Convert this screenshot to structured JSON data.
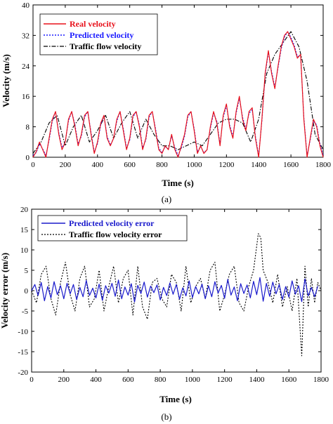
{
  "chart_data": [
    {
      "type": "line",
      "caption": "(a)",
      "xlabel": "Time (s)",
      "ylabel": "Velocity (m/s)",
      "xlim": [
        0,
        1800
      ],
      "ylim": [
        0,
        40
      ],
      "xticks": [
        0,
        200,
        400,
        600,
        800,
        1000,
        1200,
        1400,
        1600,
        1800
      ],
      "yticks": [
        0,
        8,
        16,
        24,
        32,
        40
      ],
      "grid": false,
      "legend_position": "top-left",
      "series": [
        {
          "name": "Real velocity",
          "color": "#e8101a",
          "style": "solid",
          "x": [
            0,
            20,
            40,
            60,
            80,
            100,
            120,
            140,
            160,
            180,
            200,
            220,
            240,
            260,
            280,
            300,
            320,
            340,
            360,
            380,
            400,
            420,
            440,
            460,
            480,
            500,
            520,
            540,
            560,
            580,
            600,
            620,
            640,
            660,
            680,
            700,
            720,
            740,
            760,
            780,
            800,
            820,
            840,
            860,
            880,
            900,
            920,
            940,
            960,
            980,
            1000,
            1020,
            1040,
            1060,
            1080,
            1100,
            1120,
            1140,
            1160,
            1180,
            1200,
            1220,
            1240,
            1260,
            1280,
            1300,
            1320,
            1340,
            1360,
            1380,
            1400,
            1420,
            1440,
            1460,
            1480,
            1500,
            1520,
            1540,
            1560,
            1580,
            1600,
            1620,
            1640,
            1660,
            1680,
            1700,
            1720,
            1740,
            1760,
            1780,
            1800
          ],
          "values": [
            0,
            1.5,
            4,
            2,
            0,
            5,
            10,
            12,
            6,
            2,
            4,
            10,
            12,
            8,
            3,
            6,
            11,
            12,
            6,
            1,
            4,
            9,
            11,
            5,
            3,
            5,
            10,
            12,
            7,
            2,
            5,
            11,
            12,
            8,
            2,
            5,
            11,
            12,
            7,
            2,
            1,
            3,
            2,
            6,
            2,
            0,
            3,
            6,
            11,
            12,
            7,
            1,
            3,
            1,
            2,
            8,
            12,
            9,
            3,
            11,
            14,
            8,
            5,
            12,
            16,
            10,
            7,
            12,
            13,
            5,
            0,
            10,
            22,
            28,
            22,
            18,
            24,
            29,
            32,
            33,
            31,
            29,
            26,
            27,
            10,
            0,
            5,
            10,
            8,
            3,
            0
          ]
        },
        {
          "name": "Predicted velocity",
          "color": "#1a1aff",
          "style": "dotted",
          "x": [
            0,
            20,
            40,
            60,
            80,
            100,
            120,
            140,
            160,
            180,
            200,
            220,
            240,
            260,
            280,
            300,
            320,
            340,
            360,
            380,
            400,
            420,
            440,
            460,
            480,
            500,
            520,
            540,
            560,
            580,
            600,
            620,
            640,
            660,
            680,
            700,
            720,
            740,
            760,
            780,
            800,
            820,
            840,
            860,
            880,
            900,
            920,
            940,
            960,
            980,
            1000,
            1020,
            1040,
            1060,
            1080,
            1100,
            1120,
            1140,
            1160,
            1180,
            1200,
            1220,
            1240,
            1260,
            1280,
            1300,
            1320,
            1340,
            1360,
            1380,
            1400,
            1420,
            1440,
            1460,
            1480,
            1500,
            1520,
            1540,
            1560,
            1580,
            1600,
            1620,
            1640,
            1660,
            1680,
            1700,
            1720,
            1740,
            1760,
            1780,
            1800
          ],
          "values": [
            0.5,
            1.2,
            3.5,
            2.2,
            0.5,
            4.5,
            9.5,
            12,
            6.5,
            2.5,
            4,
            9.5,
            12,
            8.5,
            3.5,
            5.5,
            10.5,
            12,
            6.5,
            1.5,
            3.5,
            8.5,
            11,
            5.5,
            3.2,
            5,
            9.5,
            12,
            7.5,
            2.5,
            4.5,
            10.5,
            12,
            8.5,
            2.5,
            4.5,
            10.5,
            12,
            7.5,
            2.5,
            1.2,
            2.8,
            2.2,
            5.5,
            2.5,
            0.5,
            2.5,
            5.5,
            10.5,
            12,
            7.5,
            1.5,
            2.8,
            1.2,
            2,
            7.5,
            11.5,
            9.5,
            3.5,
            10.5,
            13.5,
            8.5,
            5.5,
            11.5,
            15.5,
            10.5,
            7.5,
            11.5,
            12.5,
            5.5,
            0.5,
            9.5,
            21.5,
            27.5,
            22.5,
            18.5,
            23.5,
            28.5,
            31.5,
            33,
            31.5,
            29.5,
            26.5,
            26.5,
            10.5,
            0.5,
            4.5,
            9.5,
            8.5,
            3.5,
            0.5
          ]
        },
        {
          "name": "Traffic flow velocity",
          "color": "#000000",
          "style": "dashdot",
          "x": [
            0,
            50,
            100,
            150,
            200,
            250,
            300,
            350,
            400,
            450,
            500,
            550,
            600,
            650,
            700,
            750,
            800,
            850,
            900,
            950,
            1000,
            1050,
            1100,
            1150,
            1200,
            1250,
            1300,
            1350,
            1400,
            1450,
            1500,
            1550,
            1600,
            1650,
            1700,
            1750,
            1800
          ],
          "values": [
            1,
            4,
            9,
            11,
            3,
            8,
            11,
            4,
            7,
            11,
            5,
            9,
            12,
            5,
            10,
            6,
            3,
            3,
            2,
            3,
            4,
            3,
            6,
            9,
            10,
            10,
            9,
            4,
            10,
            22,
            27,
            30,
            33,
            29,
            20,
            6,
            2
          ]
        }
      ]
    },
    {
      "type": "line",
      "caption": "(b)",
      "xlabel": "Time (s)",
      "ylabel": "Velocity error (m/s)",
      "xlim": [
        0,
        1800
      ],
      "ylim": [
        -20,
        20
      ],
      "xticks": [
        0,
        200,
        400,
        600,
        800,
        1000,
        1200,
        1400,
        1600,
        1800
      ],
      "yticks": [
        -20,
        -15,
        -10,
        -5,
        0,
        5,
        10,
        15,
        20
      ],
      "grid": false,
      "legend_position": "top-left",
      "series": [
        {
          "name": "Predicted velocity error",
          "color": "#1a1acc",
          "style": "solid",
          "x": [
            0,
            20,
            40,
            60,
            80,
            100,
            120,
            140,
            160,
            180,
            200,
            220,
            240,
            260,
            280,
            300,
            320,
            340,
            360,
            380,
            400,
            420,
            440,
            460,
            480,
            500,
            520,
            540,
            560,
            580,
            600,
            620,
            640,
            660,
            680,
            700,
            720,
            740,
            760,
            780,
            800,
            820,
            840,
            860,
            880,
            900,
            920,
            940,
            960,
            980,
            1000,
            1020,
            1040,
            1060,
            1080,
            1100,
            1120,
            1140,
            1160,
            1180,
            1200,
            1220,
            1240,
            1260,
            1280,
            1300,
            1320,
            1340,
            1360,
            1380,
            1400,
            1420,
            1440,
            1460,
            1480,
            1500,
            1520,
            1540,
            1560,
            1580,
            1600,
            1620,
            1640,
            1660,
            1680,
            1700,
            1720,
            1740,
            1760,
            1780
          ],
          "values": [
            0,
            1.5,
            -1.2,
            2,
            -2.5,
            1,
            -1.8,
            2.2,
            -1,
            1.2,
            -2,
            1.8,
            -0.8,
            1.5,
            -2.2,
            0.8,
            -1.5,
            2.5,
            -1.2,
            0.6,
            -1.8,
            1.6,
            -2.4,
            1.2,
            -0.6,
            1.8,
            -1.4,
            2.6,
            -2,
            0.9,
            -1.1,
            1.7,
            -2.8,
            1.3,
            -0.7,
            2.1,
            -1.6,
            1.1,
            -0.5,
            1.4,
            -2.3,
            0.8,
            -1.2,
            1.9,
            -0.9,
            1.5,
            -2.1,
            0.7,
            -1.3,
            2.4,
            -1.7,
            1,
            -0.8,
            1.6,
            -2,
            1.2,
            -1.5,
            2.2,
            -0.6,
            1.3,
            -1.9,
            2.8,
            -1.1,
            0.9,
            -2.5,
            1.7,
            -0.7,
            1.4,
            -1.8,
            2.3,
            -1,
            3.2,
            -2.6,
            1.8,
            -1.4,
            2.1,
            -0.8,
            1.5,
            -2.2,
            1,
            -1.6,
            2.4,
            -0.9,
            1.2,
            -2.7,
            2.9,
            -1.3,
            0.8,
            -1.5,
            1.1
          ]
        },
        {
          "name": "Traffic flow velocity error",
          "color": "#000000",
          "style": "dotted",
          "x": [
            0,
            30,
            60,
            90,
            120,
            150,
            180,
            210,
            240,
            270,
            300,
            330,
            360,
            390,
            420,
            450,
            480,
            510,
            540,
            570,
            600,
            630,
            660,
            690,
            720,
            750,
            780,
            810,
            840,
            870,
            900,
            930,
            960,
            990,
            1020,
            1050,
            1080,
            1110,
            1140,
            1170,
            1200,
            1230,
            1260,
            1290,
            1320,
            1350,
            1380,
            1410,
            1425,
            1440,
            1470,
            1500,
            1530,
            1560,
            1590,
            1620,
            1650,
            1680,
            1700,
            1720,
            1740,
            1760,
            1780,
            1800
          ],
          "values": [
            0,
            -3,
            4,
            6,
            -2,
            -6,
            2,
            7,
            -1,
            -5,
            3,
            6,
            -4,
            -2,
            5,
            -5,
            1,
            6,
            -3,
            3,
            5,
            -6,
            6,
            -4,
            -7,
            2,
            3,
            -2,
            -4,
            4,
            2,
            -5,
            6,
            -3,
            1,
            3,
            -2,
            5,
            7,
            -5,
            -1,
            4,
            6,
            -3,
            -5,
            1,
            5,
            14,
            13,
            5,
            2,
            -3,
            4,
            -4,
            1,
            -5,
            3,
            -16,
            6,
            -4,
            3,
            -3,
            2,
            0
          ]
        }
      ]
    }
  ]
}
